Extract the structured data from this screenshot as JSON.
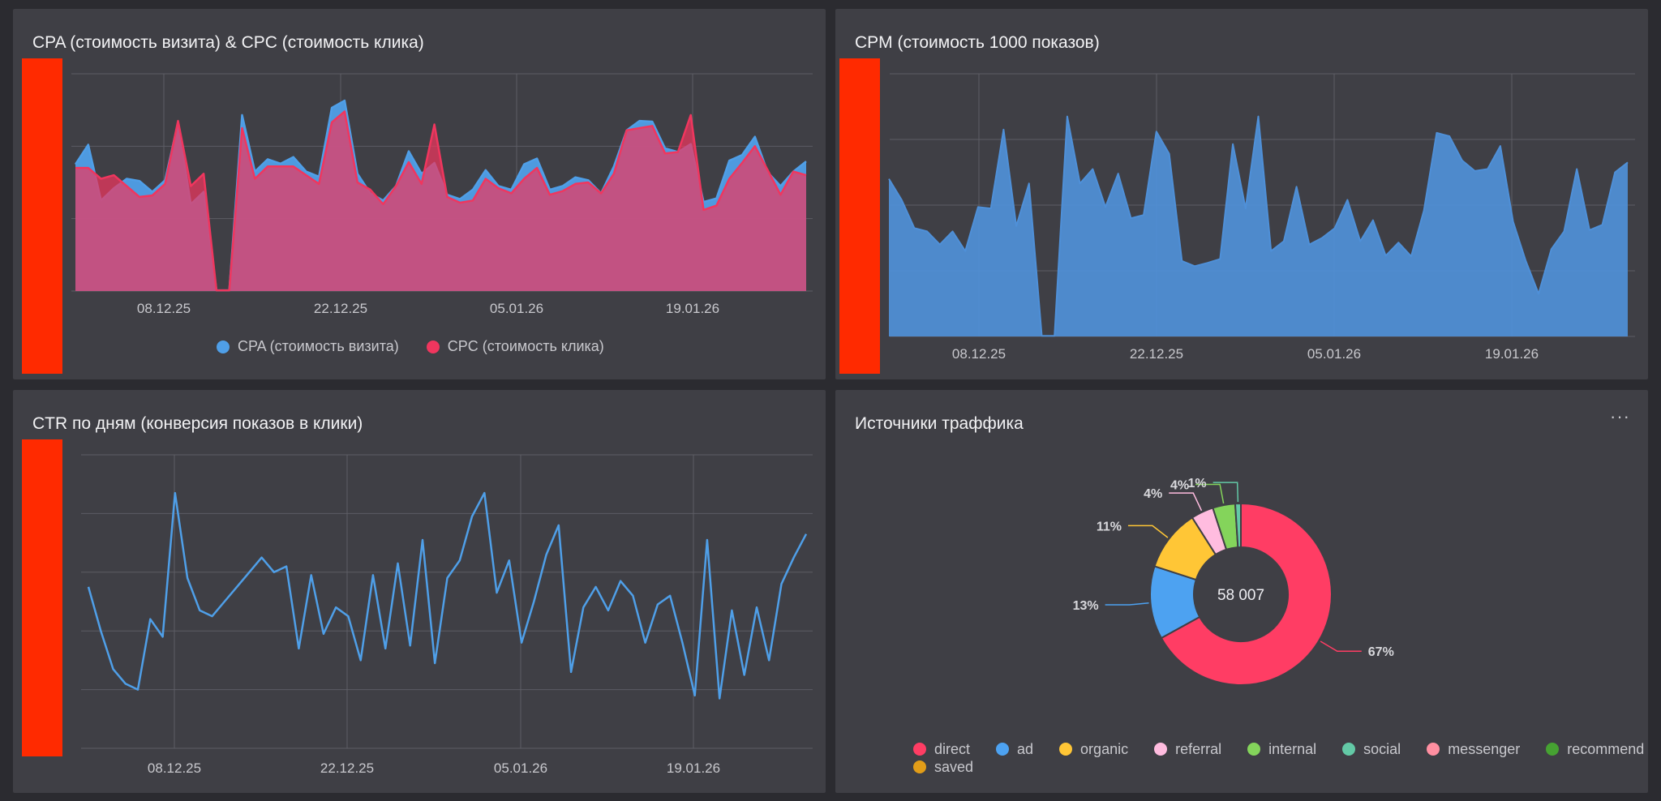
{
  "panels": {
    "cpa_cpc": {
      "title": "CPA (стоимость визита) & CPC (стоимость клика)",
      "legend": [
        {
          "label": "CPA (стоимость визита)",
          "color": "#4f9fe8"
        },
        {
          "label": "CPC (стоимость клика)",
          "color": "#f0365e"
        }
      ]
    },
    "cpm": {
      "title": "CPM (стоимость 1000 показов)"
    },
    "ctr": {
      "title": "CTR по дням (конверсия показов в клики)"
    },
    "sources": {
      "title": "Источники траффика",
      "menu": "···",
      "center_total": "58 007"
    }
  },
  "chart_data": [
    {
      "type": "area",
      "title": "CPA (стоимость визита) & CPC (стоимость клика)",
      "x_tick_labels": [
        "08.12.25",
        "22.12.25",
        "05.01.26",
        "19.01.26"
      ],
      "y_tick_labels": [],
      "ylim": [
        0,
        3
      ],
      "grid": true,
      "legend_position": "bottom",
      "series": [
        {
          "name": "CPA (стоимость визита)",
          "color": "#4f9fe8",
          "values": [
            1.75,
            2.02,
            1.25,
            1.42,
            1.55,
            1.52,
            1.37,
            1.53,
            2.33,
            1.2,
            1.37,
            0.01,
            0.01,
            2.43,
            1.65,
            1.82,
            1.76,
            1.85,
            1.65,
            1.58,
            2.53,
            2.63,
            1.62,
            1.35,
            1.25,
            1.45,
            1.93,
            1.62,
            1.77,
            1.33,
            1.27,
            1.4,
            1.67,
            1.45,
            1.4,
            1.75,
            1.83,
            1.4,
            1.45,
            1.57,
            1.53,
            1.35,
            1.72,
            2.22,
            2.35,
            2.34,
            1.97,
            1.92,
            2.03,
            1.23,
            1.28,
            1.8,
            1.88,
            2.13,
            1.64,
            1.45,
            1.65,
            1.79
          ]
        },
        {
          "name": "CPC (стоимость клика)",
          "color": "#f0365e",
          "values": [
            1.7,
            1.7,
            1.55,
            1.6,
            1.45,
            1.3,
            1.32,
            1.48,
            2.35,
            1.45,
            1.62,
            0.01,
            0.01,
            2.25,
            1.55,
            1.72,
            1.72,
            1.72,
            1.6,
            1.48,
            2.33,
            2.48,
            1.5,
            1.4,
            1.2,
            1.45,
            1.78,
            1.48,
            2.3,
            1.3,
            1.22,
            1.25,
            1.55,
            1.42,
            1.35,
            1.55,
            1.7,
            1.33,
            1.38,
            1.48,
            1.5,
            1.35,
            1.62,
            2.22,
            2.25,
            2.28,
            1.9,
            1.92,
            2.43,
            1.12,
            1.18,
            1.55,
            1.77,
            2.0,
            1.67,
            1.33,
            1.65,
            1.6
          ]
        }
      ]
    },
    {
      "type": "area",
      "title": "CPM (стоимость 1000 показов)",
      "x_tick_labels": [
        "08.12.25",
        "22.12.25",
        "05.01.26",
        "19.01.26"
      ],
      "y_tick_labels": [],
      "ylim": [
        0,
        4
      ],
      "grid": true,
      "series": [
        {
          "name": "",
          "color": "#4f90d8",
          "values": [
            2.4,
            2.08,
            1.65,
            1.6,
            1.4,
            1.6,
            1.3,
            1.97,
            1.95,
            3.15,
            1.68,
            2.33,
            0.01,
            0.01,
            3.35,
            2.33,
            2.55,
            1.97,
            2.48,
            1.8,
            1.85,
            3.12,
            2.78,
            1.15,
            1.07,
            1.12,
            1.18,
            2.93,
            1.95,
            3.35,
            1.3,
            1.45,
            2.28,
            1.4,
            1.5,
            1.65,
            2.08,
            1.45,
            1.77,
            1.23,
            1.43,
            1.22,
            1.92,
            3.1,
            3.05,
            2.68,
            2.52,
            2.55,
            2.9,
            1.75,
            1.15,
            0.65,
            1.33,
            1.6,
            2.55,
            1.62,
            1.7,
            2.5,
            2.65
          ]
        }
      ]
    },
    {
      "type": "line",
      "title": "CTR по дням (конверсия показов в клики)",
      "x_tick_labels": [
        "08.12.25",
        "22.12.25",
        "05.01.26",
        "19.01.26"
      ],
      "y_tick_labels": [],
      "ylim": [
        0,
        5
      ],
      "grid": true,
      "series": [
        {
          "name": "",
          "color": "#4f9fe8",
          "values": [
            2.75,
            2.0,
            1.35,
            1.1,
            1.0,
            2.2,
            1.9,
            4.35,
            2.9,
            2.35,
            2.25,
            2.5,
            2.75,
            3.0,
            3.25,
            3.0,
            3.1,
            1.7,
            2.95,
            1.95,
            2.4,
            2.25,
            1.5,
            2.95,
            1.7,
            3.15,
            1.75,
            3.55,
            1.45,
            2.9,
            3.2,
            3.95,
            4.35,
            2.65,
            3.2,
            1.8,
            2.5,
            3.3,
            3.8,
            1.3,
            2.4,
            2.75,
            2.35,
            2.85,
            2.6,
            1.8,
            2.45,
            2.6,
            1.8,
            0.9,
            3.55,
            0.85,
            2.35,
            1.25,
            2.4,
            1.5,
            2.8,
            3.25,
            3.65
          ]
        }
      ]
    },
    {
      "type": "pie",
      "title": "Источники траффика",
      "total_label": "58 007",
      "legend_position": "bottom",
      "slices": [
        {
          "name": "direct",
          "value": 67,
          "label": "67%",
          "color": "#ff3d64"
        },
        {
          "name": "ad",
          "value": 13,
          "label": "13%",
          "color": "#4da2f1"
        },
        {
          "name": "organic",
          "value": 11,
          "label": "11%",
          "color": "#ffc636"
        },
        {
          "name": "referral",
          "value": 4,
          "label": "4%",
          "color": "#ffbcdf"
        },
        {
          "name": "internal",
          "value": 4,
          "label": "4%",
          "color": "#84d45b"
        },
        {
          "name": "social",
          "value": 1,
          "label": "1%",
          "color": "#63c9a6"
        },
        {
          "name": "messenger",
          "value": 0,
          "label": "",
          "color": "#ff8fa1"
        },
        {
          "name": "recommend",
          "value": 0,
          "label": "",
          "color": "#46a232"
        },
        {
          "name": "saved",
          "value": 0,
          "label": "",
          "color": "#e29d18"
        }
      ]
    }
  ]
}
